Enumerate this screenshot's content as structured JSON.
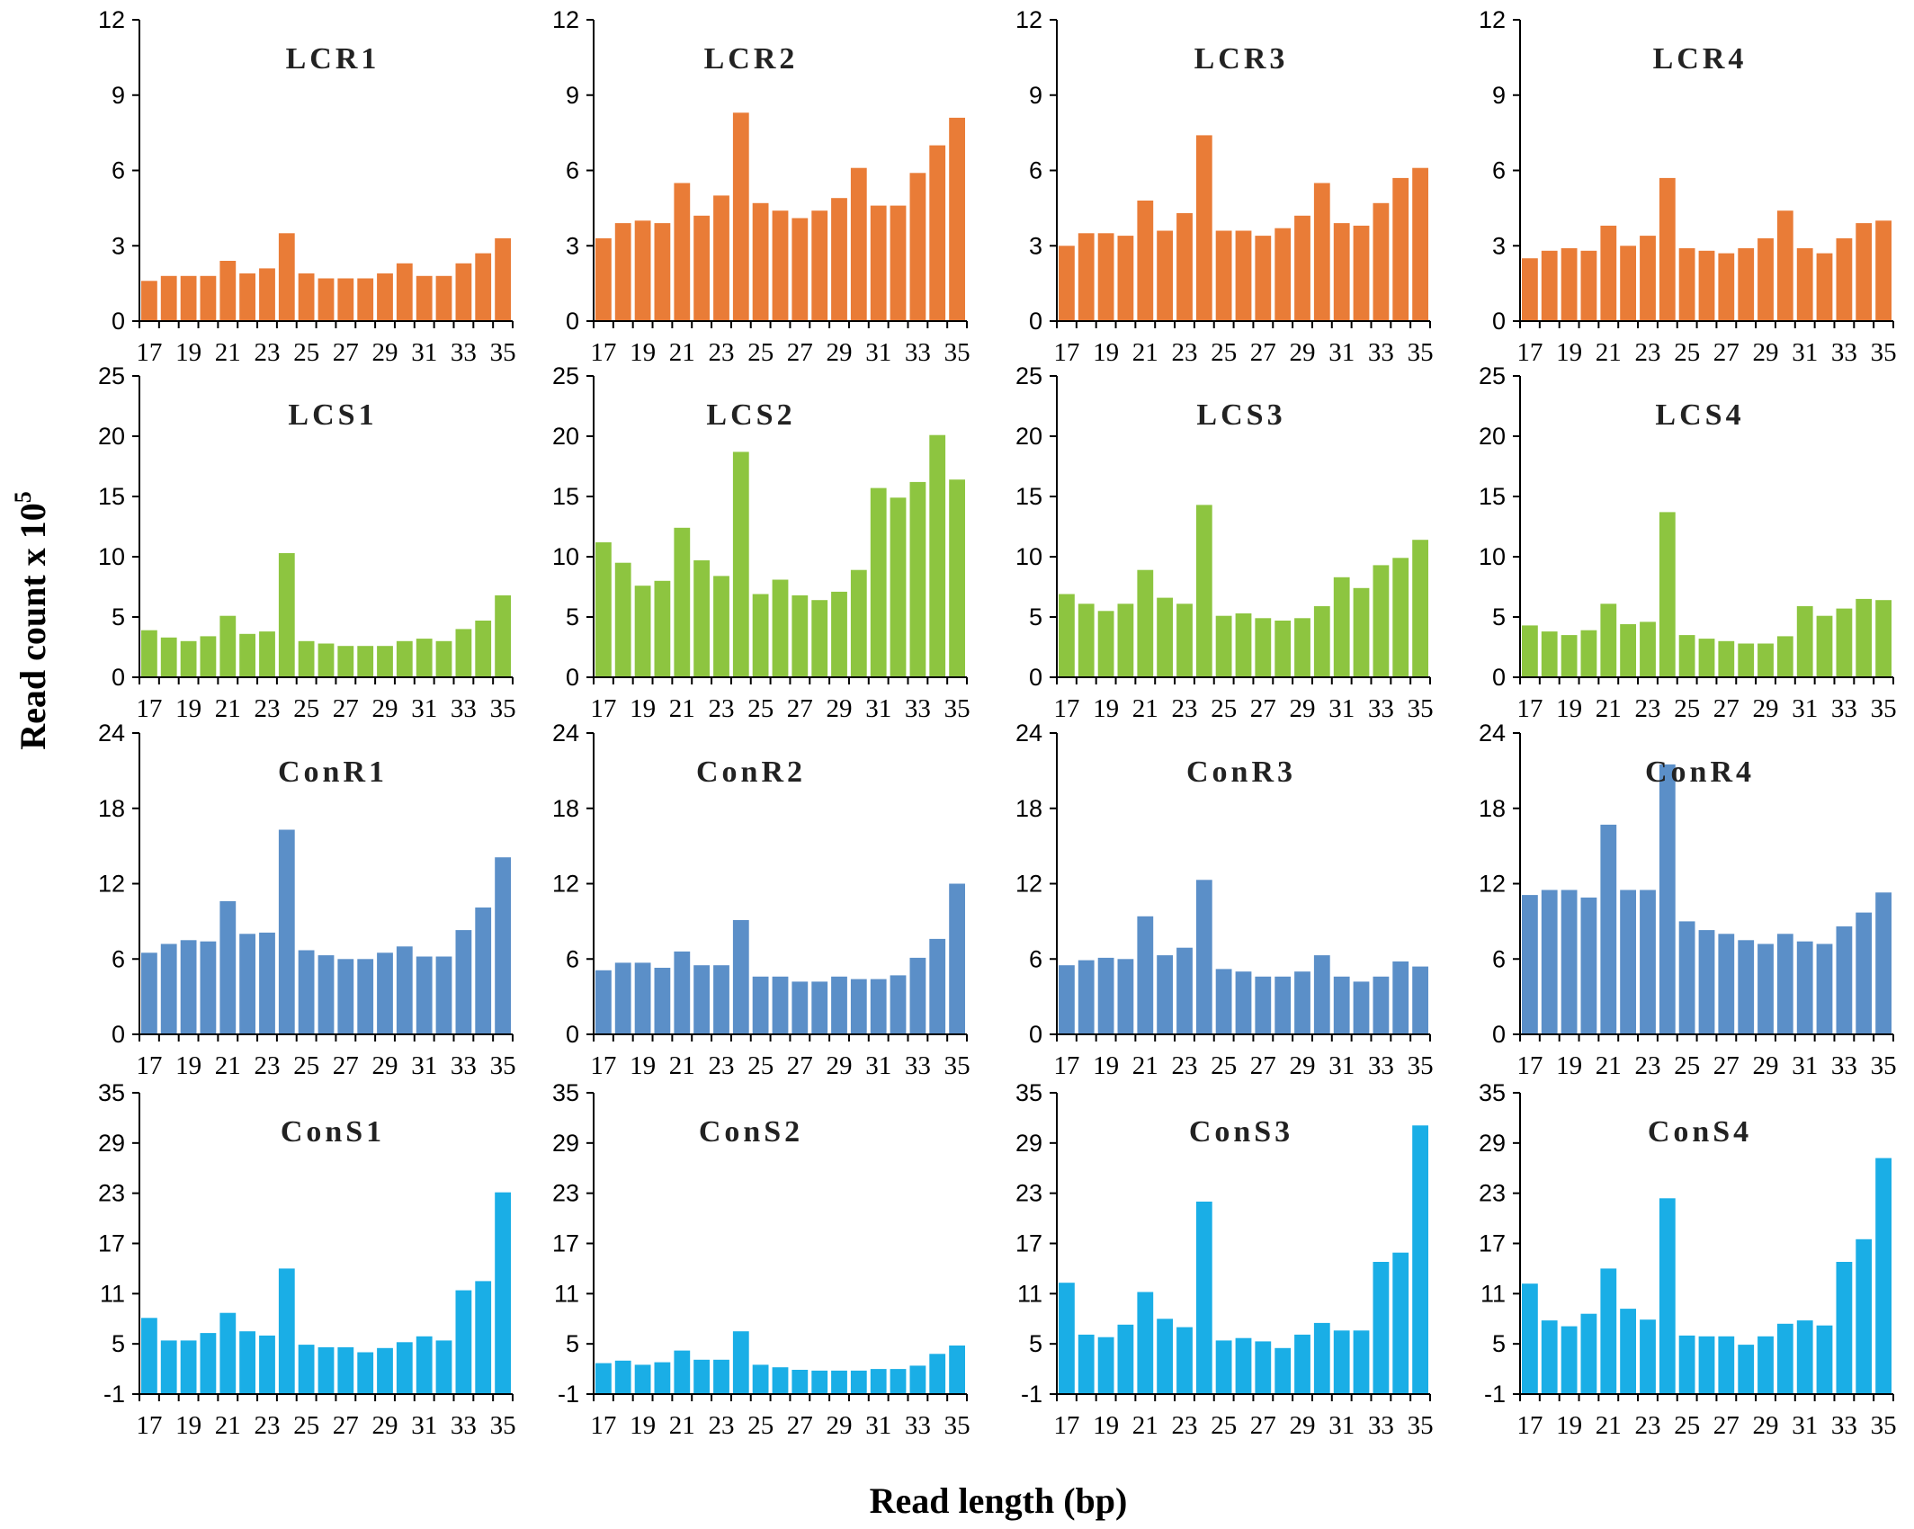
{
  "colors": {
    "LCR": "#e97c37",
    "LCS": "#8dc540",
    "ConR": "#5b8fc8",
    "ConS": "#1aaee6"
  },
  "axis_titles": {
    "y_main": "Read count x 10",
    "y_sup": "5",
    "x": "Read length (bp)"
  },
  "chart_data": [
    {
      "type": "bar",
      "title": "LCR1",
      "group": "LCR",
      "yticks": [
        "0",
        "3",
        "6",
        "9",
        "12"
      ],
      "ylim": [
        0,
        12
      ],
      "x": [
        17,
        18,
        19,
        20,
        21,
        22,
        23,
        24,
        25,
        26,
        27,
        28,
        29,
        30,
        31,
        32,
        33,
        34,
        35
      ],
      "xtick_labels": [
        "17",
        "19",
        "21",
        "23",
        "25",
        "27",
        "29",
        "31",
        "33",
        "35"
      ],
      "values": [
        1.6,
        1.8,
        1.8,
        1.8,
        2.4,
        1.9,
        2.1,
        3.5,
        1.9,
        1.7,
        1.7,
        1.7,
        1.9,
        2.3,
        1.8,
        1.8,
        2.3,
        2.7,
        3.3
      ]
    },
    {
      "type": "bar",
      "title": "LCR2",
      "group": "LCR",
      "yticks": [
        "0",
        "3",
        "6",
        "9",
        "12"
      ],
      "ylim": [
        0,
        12
      ],
      "x": [
        17,
        18,
        19,
        20,
        21,
        22,
        23,
        24,
        25,
        26,
        27,
        28,
        29,
        30,
        31,
        32,
        33,
        34,
        35
      ],
      "xtick_labels": [
        "17",
        "19",
        "21",
        "23",
        "25",
        "27",
        "29",
        "31",
        "33",
        "35"
      ],
      "values": [
        3.3,
        3.9,
        4.0,
        3.9,
        5.5,
        4.2,
        5.0,
        8.3,
        4.7,
        4.4,
        4.1,
        4.4,
        4.9,
        6.1,
        4.6,
        4.6,
        5.9,
        7.0,
        8.1
      ]
    },
    {
      "type": "bar",
      "title": "LCR3",
      "group": "LCR",
      "yticks": [
        "0",
        "3",
        "6",
        "9",
        "12"
      ],
      "ylim": [
        0,
        12
      ],
      "x": [
        17,
        18,
        19,
        20,
        21,
        22,
        23,
        24,
        25,
        26,
        27,
        28,
        29,
        30,
        31,
        32,
        33,
        34,
        35
      ],
      "xtick_labels": [
        "17",
        "19",
        "21",
        "23",
        "25",
        "27",
        "29",
        "31",
        "33",
        "35"
      ],
      "values": [
        3.0,
        3.5,
        3.5,
        3.4,
        4.8,
        3.6,
        4.3,
        7.4,
        3.6,
        3.6,
        3.4,
        3.7,
        4.2,
        5.5,
        3.9,
        3.8,
        4.7,
        5.7,
        6.1
      ]
    },
    {
      "type": "bar",
      "title": "LCR4",
      "group": "LCR",
      "yticks": [
        "0",
        "3",
        "6",
        "9",
        "12"
      ],
      "ylim": [
        0,
        12
      ],
      "x": [
        17,
        18,
        19,
        20,
        21,
        22,
        23,
        24,
        25,
        26,
        27,
        28,
        29,
        30,
        31,
        32,
        33,
        34,
        35
      ],
      "xtick_labels": [
        "17",
        "19",
        "21",
        "23",
        "25",
        "27",
        "29",
        "31",
        "33",
        "35"
      ],
      "values": [
        2.5,
        2.8,
        2.9,
        2.8,
        3.8,
        3.0,
        3.4,
        5.7,
        2.9,
        2.8,
        2.7,
        2.9,
        3.3,
        4.4,
        2.9,
        2.7,
        3.3,
        3.9,
        4.0
      ]
    },
    {
      "type": "bar",
      "title": "LCS1",
      "group": "LCS",
      "yticks": [
        "0",
        "5",
        "10",
        "15",
        "20",
        "25"
      ],
      "ylim": [
        0,
        25
      ],
      "x": [
        17,
        18,
        19,
        20,
        21,
        22,
        23,
        24,
        25,
        26,
        27,
        28,
        29,
        30,
        31,
        32,
        33,
        34,
        35
      ],
      "xtick_labels": [
        "17",
        "19",
        "21",
        "23",
        "25",
        "27",
        "29",
        "31",
        "33",
        "35"
      ],
      "values": [
        3.9,
        3.3,
        3.0,
        3.4,
        5.1,
        3.6,
        3.8,
        10.3,
        3.0,
        2.8,
        2.6,
        2.6,
        2.6,
        3.0,
        3.2,
        3.0,
        4.0,
        4.7,
        6.8
      ]
    },
    {
      "type": "bar",
      "title": "LCS2",
      "group": "LCS",
      "yticks": [
        "0",
        "5",
        "10",
        "15",
        "20",
        "25"
      ],
      "ylim": [
        0,
        25
      ],
      "x": [
        17,
        18,
        19,
        20,
        21,
        22,
        23,
        24,
        25,
        26,
        27,
        28,
        29,
        30,
        31,
        32,
        33,
        34,
        35
      ],
      "xtick_labels": [
        "17",
        "19",
        "21",
        "23",
        "25",
        "27",
        "29",
        "31",
        "33",
        "35"
      ],
      "values": [
        11.2,
        9.5,
        7.6,
        8.0,
        12.4,
        9.7,
        8.4,
        18.7,
        6.9,
        8.1,
        6.8,
        6.4,
        7.1,
        8.9,
        15.7,
        14.9,
        16.2,
        20.1,
        16.4
      ]
    },
    {
      "type": "bar",
      "title": "LCS3",
      "group": "LCS",
      "yticks": [
        "0",
        "5",
        "10",
        "15",
        "20",
        "25"
      ],
      "ylim": [
        0,
        25
      ],
      "x": [
        17,
        18,
        19,
        20,
        21,
        22,
        23,
        24,
        25,
        26,
        27,
        28,
        29,
        30,
        31,
        32,
        33,
        34,
        35
      ],
      "xtick_labels": [
        "17",
        "19",
        "21",
        "23",
        "25",
        "27",
        "29",
        "31",
        "33",
        "35"
      ],
      "values": [
        6.9,
        6.1,
        5.5,
        6.1,
        8.9,
        6.6,
        6.1,
        14.3,
        5.1,
        5.3,
        4.9,
        4.7,
        4.9,
        5.9,
        8.3,
        7.4,
        9.3,
        9.9,
        11.4
      ]
    },
    {
      "type": "bar",
      "title": "LCS4",
      "group": "LCS",
      "yticks": [
        "0",
        "5",
        "10",
        "15",
        "20",
        "25"
      ],
      "ylim": [
        0,
        25
      ],
      "x": [
        17,
        18,
        19,
        20,
        21,
        22,
        23,
        24,
        25,
        26,
        27,
        28,
        29,
        30,
        31,
        32,
        33,
        34,
        35
      ],
      "xtick_labels": [
        "17",
        "19",
        "21",
        "23",
        "25",
        "27",
        "29",
        "31",
        "33",
        "35"
      ],
      "values": [
        4.3,
        3.8,
        3.5,
        3.9,
        6.1,
        4.4,
        4.6,
        13.7,
        3.5,
        3.2,
        3.0,
        2.8,
        2.8,
        3.4,
        5.9,
        5.1,
        5.7,
        6.5,
        6.4
      ]
    },
    {
      "type": "bar",
      "title": "ConR1",
      "group": "ConR",
      "yticks": [
        "0",
        "6",
        "12",
        "18",
        "24"
      ],
      "ylim": [
        0,
        24
      ],
      "x": [
        17,
        18,
        19,
        20,
        21,
        22,
        23,
        24,
        25,
        26,
        27,
        28,
        29,
        30,
        31,
        32,
        33,
        34,
        35
      ],
      "xtick_labels": [
        "17",
        "19",
        "21",
        "23",
        "25",
        "27",
        "29",
        "31",
        "33",
        "35"
      ],
      "values": [
        6.5,
        7.2,
        7.5,
        7.4,
        10.6,
        8.0,
        8.1,
        16.3,
        6.7,
        6.3,
        6.0,
        6.0,
        6.5,
        7.0,
        6.2,
        6.2,
        8.3,
        10.1,
        14.1
      ]
    },
    {
      "type": "bar",
      "title": "ConR2",
      "group": "ConR",
      "yticks": [
        "0",
        "6",
        "12",
        "18",
        "24"
      ],
      "ylim": [
        0,
        24
      ],
      "x": [
        17,
        18,
        19,
        20,
        21,
        22,
        23,
        24,
        25,
        26,
        27,
        28,
        29,
        30,
        31,
        32,
        33,
        34,
        35
      ],
      "xtick_labels": [
        "17",
        "19",
        "21",
        "23",
        "25",
        "27",
        "29",
        "31",
        "33",
        "35"
      ],
      "values": [
        5.1,
        5.7,
        5.7,
        5.3,
        6.6,
        5.5,
        5.5,
        9.1,
        4.6,
        4.6,
        4.2,
        4.2,
        4.6,
        4.4,
        4.4,
        4.7,
        6.1,
        7.6,
        12.0
      ]
    },
    {
      "type": "bar",
      "title": "ConR3",
      "group": "ConR",
      "yticks": [
        "0",
        "6",
        "12",
        "18",
        "24"
      ],
      "ylim": [
        0,
        24
      ],
      "x": [
        17,
        18,
        19,
        20,
        21,
        22,
        23,
        24,
        25,
        26,
        27,
        28,
        29,
        30,
        31,
        32,
        33,
        34,
        35
      ],
      "xtick_labels": [
        "17",
        "19",
        "21",
        "23",
        "25",
        "27",
        "29",
        "31",
        "33",
        "35"
      ],
      "values": [
        5.5,
        5.9,
        6.1,
        6.0,
        9.4,
        6.3,
        6.9,
        12.3,
        5.2,
        5.0,
        4.6,
        4.6,
        5.0,
        6.3,
        4.6,
        4.2,
        4.6,
        5.8,
        5.4
      ]
    },
    {
      "type": "bar",
      "title": "ConR4",
      "group": "ConR",
      "yticks": [
        "0",
        "6",
        "12",
        "18",
        "24"
      ],
      "ylim": [
        0,
        24
      ],
      "x": [
        17,
        18,
        19,
        20,
        21,
        22,
        23,
        24,
        25,
        26,
        27,
        28,
        29,
        30,
        31,
        32,
        33,
        34,
        35
      ],
      "xtick_labels": [
        "17",
        "19",
        "21",
        "23",
        "25",
        "27",
        "29",
        "31",
        "33",
        "35"
      ],
      "values": [
        11.1,
        11.5,
        11.5,
        10.9,
        16.7,
        11.5,
        11.5,
        21.5,
        9.0,
        8.3,
        8.0,
        7.5,
        7.2,
        8.0,
        7.4,
        7.2,
        8.6,
        9.7,
        11.3
      ]
    },
    {
      "type": "bar",
      "title": "ConS1",
      "group": "ConS",
      "yticks": [
        "-1",
        "5",
        "11",
        "17",
        "23",
        "29",
        "35"
      ],
      "ylim": [
        -1,
        35
      ],
      "x": [
        17,
        18,
        19,
        20,
        21,
        22,
        23,
        24,
        25,
        26,
        27,
        28,
        29,
        30,
        31,
        32,
        33,
        34,
        35
      ],
      "xtick_labels": [
        "17",
        "19",
        "21",
        "23",
        "25",
        "27",
        "29",
        "31",
        "33",
        "35"
      ],
      "values": [
        8.1,
        5.4,
        5.4,
        6.3,
        8.7,
        6.5,
        6.0,
        14.0,
        4.9,
        4.6,
        4.6,
        4.0,
        4.5,
        5.2,
        5.9,
        5.4,
        11.4,
        12.5,
        23.1
      ]
    },
    {
      "type": "bar",
      "title": "ConS2",
      "group": "ConS",
      "yticks": [
        "-1",
        "5",
        "11",
        "17",
        "23",
        "29",
        "35"
      ],
      "ylim": [
        -1,
        35
      ],
      "x": [
        17,
        18,
        19,
        20,
        21,
        22,
        23,
        24,
        25,
        26,
        27,
        28,
        29,
        30,
        31,
        32,
        33,
        34,
        35
      ],
      "xtick_labels": [
        "17",
        "19",
        "21",
        "23",
        "25",
        "27",
        "29",
        "31",
        "33",
        "35"
      ],
      "values": [
        2.7,
        3.0,
        2.5,
        2.8,
        4.2,
        3.1,
        3.1,
        6.5,
        2.5,
        2.2,
        1.9,
        1.8,
        1.8,
        1.8,
        2.0,
        2.0,
        2.4,
        3.8,
        4.8
      ]
    },
    {
      "type": "bar",
      "title": "ConS3",
      "group": "ConS",
      "yticks": [
        "-1",
        "5",
        "11",
        "17",
        "23",
        "29",
        "35"
      ],
      "ylim": [
        -1,
        35
      ],
      "x": [
        17,
        18,
        19,
        20,
        21,
        22,
        23,
        24,
        25,
        26,
        27,
        28,
        29,
        30,
        31,
        32,
        33,
        34,
        35
      ],
      "xtick_labels": [
        "17",
        "19",
        "21",
        "23",
        "25",
        "27",
        "29",
        "31",
        "33",
        "35"
      ],
      "values": [
        12.3,
        6.1,
        5.8,
        7.3,
        11.2,
        8.0,
        7.0,
        22.0,
        5.4,
        5.7,
        5.3,
        4.5,
        6.1,
        7.5,
        6.6,
        6.6,
        14.8,
        15.9,
        31.1
      ]
    },
    {
      "type": "bar",
      "title": "ConS4",
      "group": "ConS",
      "yticks": [
        "-1",
        "5",
        "11",
        "17",
        "23",
        "29",
        "35"
      ],
      "ylim": [
        -1,
        35
      ],
      "x": [
        17,
        18,
        19,
        20,
        21,
        22,
        23,
        24,
        25,
        26,
        27,
        28,
        29,
        30,
        31,
        32,
        33,
        34,
        35
      ],
      "xtick_labels": [
        "17",
        "19",
        "21",
        "23",
        "25",
        "27",
        "29",
        "31",
        "33",
        "35"
      ],
      "values": [
        12.2,
        7.8,
        7.1,
        8.6,
        14.0,
        9.2,
        7.9,
        22.4,
        6.0,
        5.9,
        5.9,
        4.9,
        5.9,
        7.4,
        7.8,
        7.2,
        14.8,
        17.5,
        27.2
      ]
    }
  ]
}
